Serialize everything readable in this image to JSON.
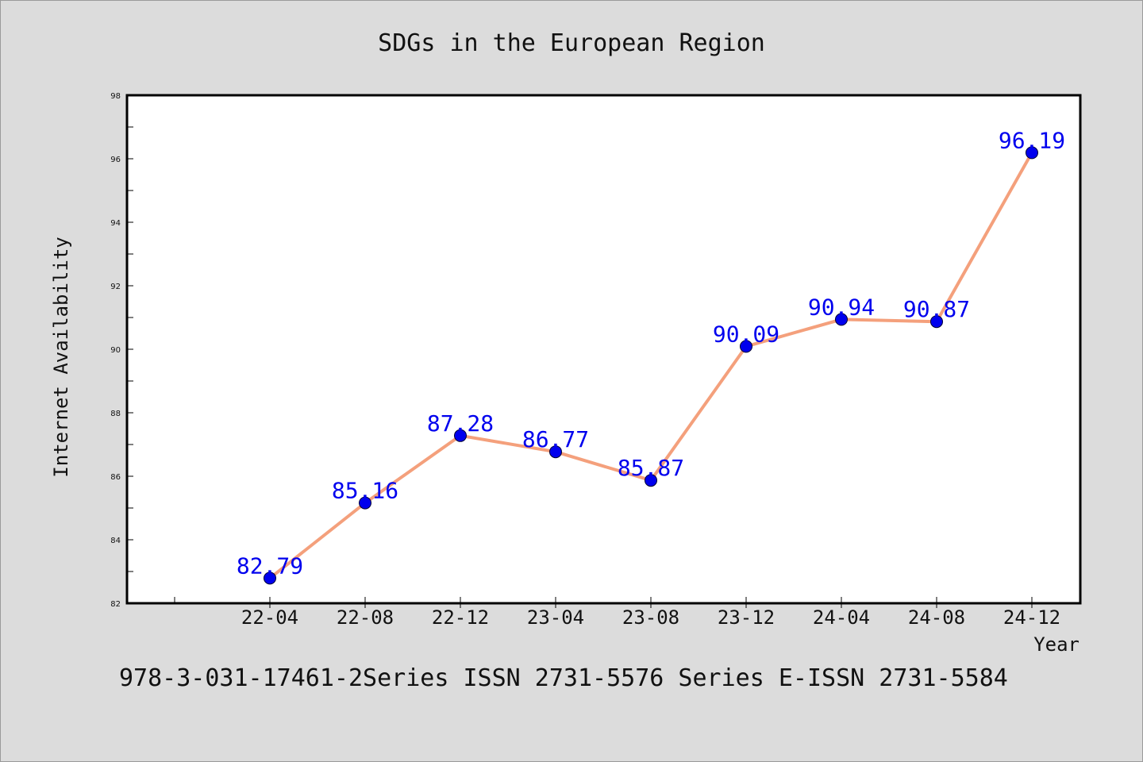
{
  "chart_data": {
    "type": "line",
    "title": "SDGs in the European Region",
    "xlabel": "Year",
    "ylabel": "Internet Availability",
    "categories": [
      "22-04",
      "22-08",
      "22-12",
      "23-04",
      "23-08",
      "23-12",
      "24-04",
      "24-08",
      "24-12"
    ],
    "series": [
      {
        "values": [
          82.79,
          85.16,
          87.28,
          86.77,
          85.87,
          90.09,
          90.94,
          90.87,
          96.19
        ]
      }
    ],
    "data_labels": [
      "82.79",
      "85.16",
      "87.28",
      "86.77",
      "85.87",
      "90.09",
      "90.94",
      "90.87",
      "96.19"
    ],
    "ylim": [
      82,
      98
    ],
    "yticks": [
      82,
      84,
      86,
      88,
      90,
      92,
      94,
      96,
      98
    ],
    "grid": false,
    "colors": {
      "line": "#f4a07c",
      "marker": "#0000ee",
      "label": "#0000ee",
      "background": "#dcdcdc",
      "plot_background": "#ffffff"
    }
  },
  "footer": "978-3-031-17461-2Series ISSN 2731-5576 Series E-ISSN 2731-5584"
}
